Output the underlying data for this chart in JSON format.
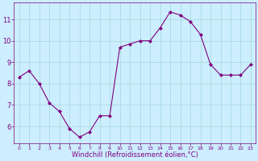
{
  "x": [
    0,
    1,
    2,
    3,
    4,
    5,
    6,
    7,
    8,
    9,
    10,
    11,
    12,
    13,
    14,
    15,
    16,
    17,
    18,
    19,
    20,
    21,
    22,
    23
  ],
  "y": [
    8.3,
    8.6,
    8.0,
    7.1,
    6.7,
    5.9,
    5.5,
    5.75,
    6.5,
    6.5,
    9.7,
    9.85,
    10.0,
    10.0,
    10.6,
    11.35,
    11.2,
    10.9,
    10.3,
    8.9,
    8.4,
    8.4,
    8.4,
    8.9
  ],
  "xlabel": "Windchill (Refroidissement éolien,°C)",
  "yticks": [
    6,
    7,
    8,
    9,
    10,
    11
  ],
  "xticks": [
    0,
    1,
    2,
    3,
    4,
    5,
    6,
    7,
    8,
    9,
    10,
    11,
    12,
    13,
    14,
    15,
    16,
    17,
    18,
    19,
    20,
    21,
    22,
    23
  ],
  "line_color": "#800080",
  "marker_color": "#800080",
  "bg_color": "#cceeff",
  "grid_color": "#aadddd",
  "ylim": [
    5.2,
    11.8
  ],
  "xlim": [
    -0.5,
    23.5
  ]
}
